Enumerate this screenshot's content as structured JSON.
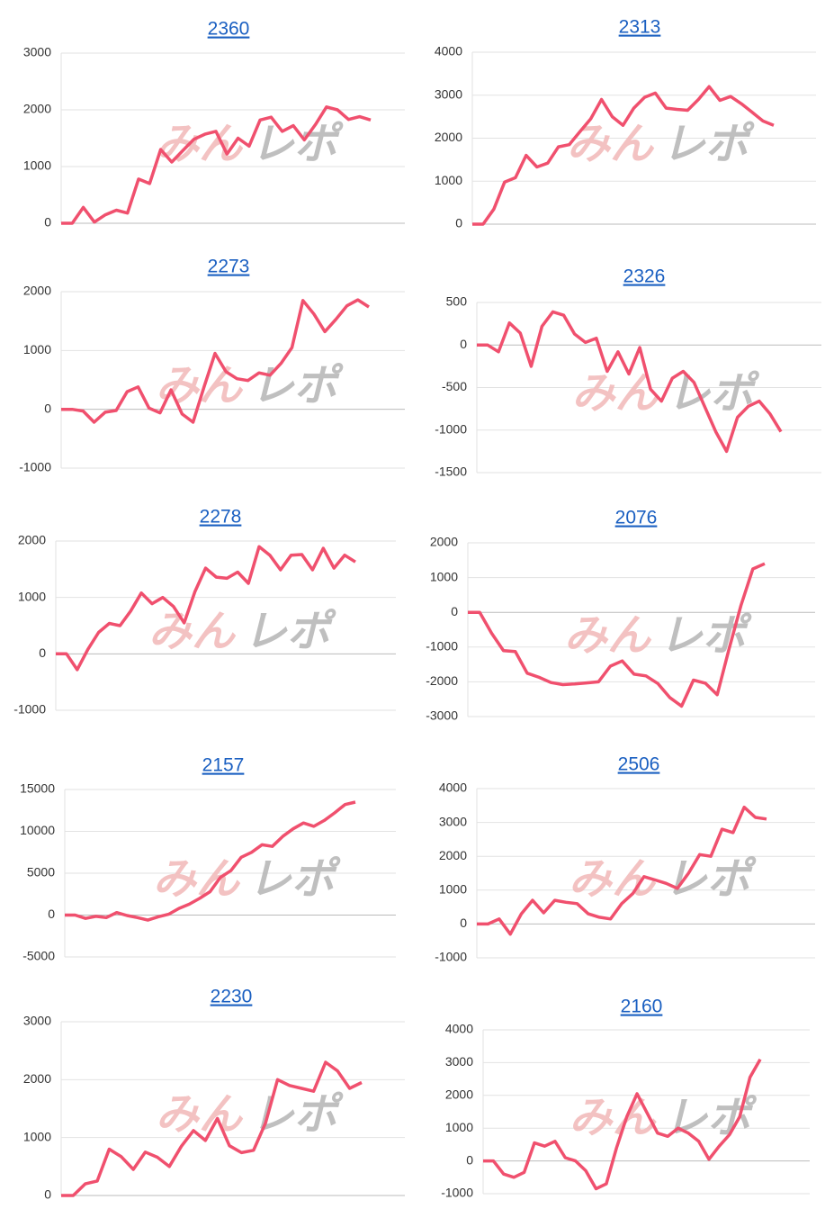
{
  "watermark": {
    "left": "みん",
    "right": "レポ"
  },
  "chart_data": [
    {
      "type": "line",
      "title": "2360",
      "color": "#f0506e",
      "grid": true,
      "ylim": [
        0,
        3000
      ],
      "yticks": [
        0,
        1000,
        2000,
        3000
      ],
      "values": [
        0,
        0,
        280,
        20,
        150,
        230,
        180,
        780,
        700,
        1300,
        1080,
        1280,
        1480,
        1570,
        1620,
        1220,
        1500,
        1360,
        1820,
        1870,
        1620,
        1720,
        1470,
        1740,
        2050,
        2000,
        1830,
        1880,
        1820
      ]
    },
    {
      "type": "line",
      "title": "2313",
      "color": "#f0506e",
      "grid": true,
      "ylim": [
        0,
        4000
      ],
      "yticks": [
        0,
        1000,
        2000,
        3000,
        4000
      ],
      "values": [
        0,
        0,
        350,
        980,
        1080,
        1600,
        1330,
        1420,
        1800,
        1850,
        2150,
        2450,
        2900,
        2500,
        2300,
        2700,
        2950,
        3050,
        2700,
        2670,
        2650,
        2900,
        3200,
        2880,
        2970,
        2800,
        2600,
        2400,
        2300
      ]
    },
    {
      "type": "line",
      "title": "2273",
      "color": "#f0506e",
      "grid": true,
      "ylim": [
        -1000,
        2000
      ],
      "yticks": [
        -1000,
        0,
        1000,
        2000
      ],
      "values": [
        0,
        0,
        -30,
        -220,
        -50,
        -20,
        300,
        380,
        20,
        -60,
        330,
        -80,
        -220,
        380,
        950,
        640,
        520,
        490,
        620,
        580,
        780,
        1050,
        1850,
        1620,
        1320,
        1530,
        1760,
        1860,
        1740
      ]
    },
    {
      "type": "line",
      "title": "2326",
      "color": "#f0506e",
      "grid": true,
      "ylim": [
        -1500,
        500
      ],
      "yticks": [
        -1500,
        -1000,
        -500,
        0,
        500
      ],
      "values": [
        0,
        0,
        -80,
        260,
        140,
        -250,
        220,
        390,
        350,
        130,
        30,
        80,
        -310,
        -80,
        -340,
        -30,
        -520,
        -660,
        -390,
        -310,
        -440,
        -730,
        -1020,
        -1250,
        -850,
        -720,
        -660,
        -810,
        -1020
      ]
    },
    {
      "type": "line",
      "title": "2278",
      "color": "#f0506e",
      "grid": true,
      "ylim": [
        -1000,
        2000
      ],
      "yticks": [
        -1000,
        0,
        1000,
        2000
      ],
      "values": [
        0,
        0,
        -280,
        80,
        380,
        540,
        500,
        760,
        1080,
        890,
        1000,
        840,
        550,
        1100,
        1520,
        1360,
        1340,
        1450,
        1250,
        1900,
        1750,
        1490,
        1750,
        1760,
        1490,
        1870,
        1520,
        1750,
        1630
      ]
    },
    {
      "type": "line",
      "title": "2076",
      "color": "#f0506e",
      "grid": true,
      "ylim": [
        -3000,
        2000
      ],
      "yticks": [
        -3000,
        -2000,
        -1000,
        0,
        1000,
        2000
      ],
      "values": [
        0,
        0,
        -600,
        -1100,
        -1130,
        -1750,
        -1870,
        -2020,
        -2080,
        -2060,
        -2030,
        -2000,
        -1550,
        -1400,
        -1780,
        -1830,
        -2050,
        -2450,
        -2700,
        -1950,
        -2040,
        -2370,
        -1050,
        200,
        1250,
        1400
      ]
    },
    {
      "type": "line",
      "title": "2157",
      "color": "#f0506e",
      "grid": true,
      "ylim": [
        -5000,
        15000
      ],
      "yticks": [
        -5000,
        0,
        5000,
        10000,
        15000
      ],
      "values": [
        0,
        0,
        -400,
        -150,
        -300,
        300,
        -50,
        -300,
        -600,
        -200,
        100,
        800,
        1300,
        2000,
        2800,
        4500,
        5300,
        6900,
        7500,
        8400,
        8200,
        9400,
        10300,
        11000,
        10600,
        11300,
        12200,
        13200,
        13500
      ]
    },
    {
      "type": "line",
      "title": "2506",
      "color": "#f0506e",
      "grid": true,
      "ylim": [
        -1000,
        4000
      ],
      "yticks": [
        -1000,
        0,
        1000,
        2000,
        3000,
        4000
      ],
      "values": [
        0,
        0,
        150,
        -300,
        300,
        700,
        330,
        700,
        640,
        600,
        300,
        200,
        150,
        600,
        900,
        1400,
        1300,
        1200,
        1050,
        1500,
        2050,
        2000,
        2800,
        2700,
        3450,
        3150,
        3100
      ]
    },
    {
      "type": "line",
      "title": "2230",
      "color": "#f0506e",
      "grid": true,
      "ylim": [
        0,
        3000
      ],
      "yticks": [
        0,
        1000,
        2000,
        3000
      ],
      "values": [
        0,
        0,
        200,
        250,
        800,
        670,
        450,
        750,
        660,
        500,
        850,
        1120,
        950,
        1330,
        860,
        740,
        780,
        1250,
        2000,
        1900,
        1850,
        1800,
        2300,
        2150,
        1850,
        1950
      ]
    },
    {
      "type": "line",
      "title": "2160",
      "color": "#f0506e",
      "grid": true,
      "ylim": [
        -1000,
        4000
      ],
      "yticks": [
        -1000,
        0,
        1000,
        2000,
        3000,
        4000
      ],
      "values": [
        0,
        0,
        -400,
        -500,
        -350,
        550,
        450,
        600,
        100,
        0,
        -300,
        -850,
        -700,
        400,
        1350,
        2050,
        1450,
        850,
        750,
        1000,
        850,
        600,
        50,
        450,
        800,
        1350,
        2550,
        3100
      ]
    }
  ]
}
